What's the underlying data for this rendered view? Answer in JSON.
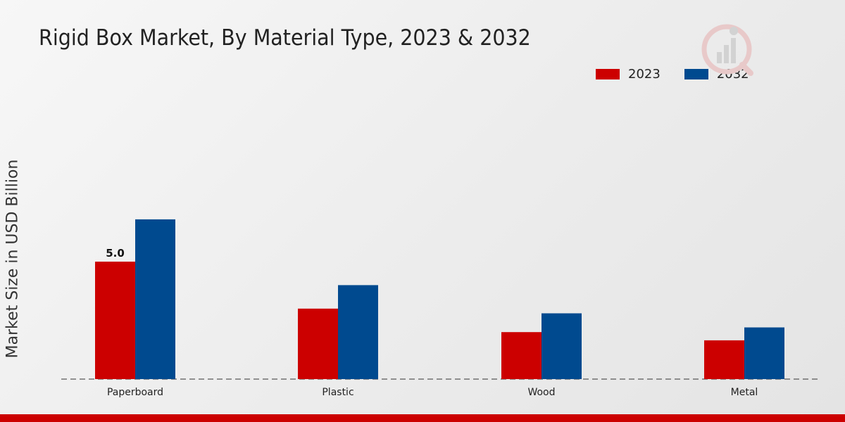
{
  "title": "Rigid Box Market, By Material Type, 2023 & 2032",
  "chart_data": {
    "type": "bar",
    "title": "Rigid Box Market, By Material Type, 2023 & 2032",
    "xlabel": "",
    "ylabel": "Market Size in USD Billion",
    "categories": [
      "Paperboard",
      "Plastic",
      "Wood",
      "Metal"
    ],
    "series": [
      {
        "name": "2023",
        "color": "#cc0000",
        "values": [
          5.0,
          3.0,
          2.0,
          1.65
        ]
      },
      {
        "name": "2032",
        "color": "#004a8f",
        "values": [
          6.8,
          4.0,
          2.8,
          2.2
        ]
      }
    ],
    "data_labels": [
      {
        "series": 0,
        "index": 0,
        "text": "5.0"
      }
    ],
    "ylim": [
      0,
      12
    ],
    "grid": false,
    "legend_position": "top-right"
  },
  "icons": {
    "logo": "market-research-logo-icon"
  },
  "colors": {
    "accent": "#cc0000",
    "secondary": "#004a8f"
  }
}
